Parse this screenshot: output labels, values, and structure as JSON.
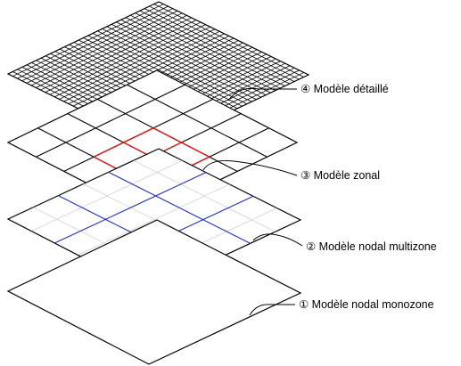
{
  "diagram": {
    "layers": [
      {
        "key": "detailed",
        "label": "④ Modèle détaillé",
        "grid_divisions": 32,
        "highlight": {
          "color": "#22cc22",
          "row_start": 16,
          "row_end": 19,
          "col_start": 22,
          "col_end": 26
        }
      },
      {
        "key": "zonal",
        "label": "③ Modèle zonal",
        "grid_divisions": 5,
        "highlight": {
          "color": "#cc2222",
          "row_start": 2,
          "row_end": 4,
          "col_start": 2,
          "col_end": 4
        }
      },
      {
        "key": "nodal-multizone",
        "label": "② Modèle nodal multizone",
        "grid_divisions": 3,
        "grid_color": "#2233bb",
        "faint_color": "#cccccc"
      },
      {
        "key": "nodal-monozone",
        "label": "① Modèle nodal monozone",
        "grid_divisions": 0
      }
    ]
  }
}
